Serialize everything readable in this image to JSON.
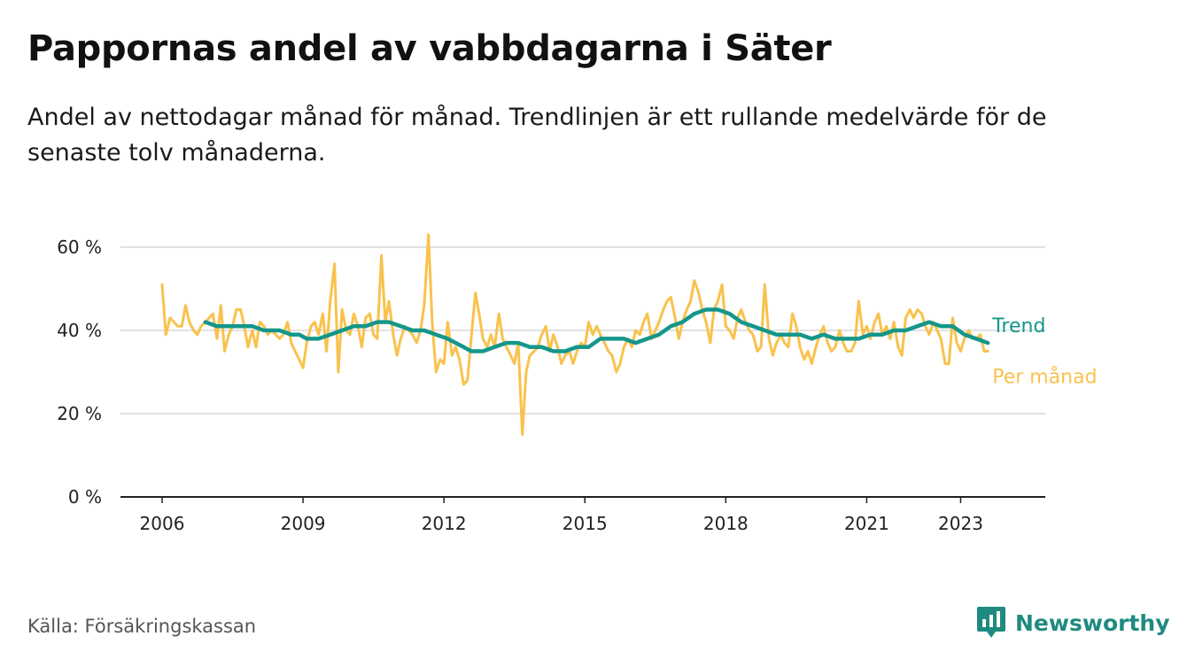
{
  "title": "Pappornas andel av vabbdagarna i Säter",
  "subtitle": "Andel av nettodagar månad för månad. Trendlinjen är ett rullande medelvärde för de senaste tolv månaderna.",
  "source": "Källa: Försäkringskassan",
  "brand": {
    "name": "Newsworthy",
    "icon": "newsworthy-logo-icon",
    "color": "#1f8a80"
  },
  "chart_data": {
    "type": "line",
    "xlim": [
      2006,
      2024
    ],
    "ylim": [
      0,
      0.6
    ],
    "y_ticks": [
      {
        "value": 0,
        "label": "0 %"
      },
      {
        "value": 0.2,
        "label": "20 %"
      },
      {
        "value": 0.4,
        "label": "40 %"
      },
      {
        "value": 0.6,
        "label": "60 %"
      }
    ],
    "x_ticks": [
      {
        "value": 2006,
        "label": "2006"
      },
      {
        "value": 2009,
        "label": "2009"
      },
      {
        "value": 2012,
        "label": "2012"
      },
      {
        "value": 2015,
        "label": "2015"
      },
      {
        "value": 2018,
        "label": "2018"
      },
      {
        "value": 2021,
        "label": "2021"
      },
      {
        "value": 2023,
        "label": "2023"
      }
    ],
    "grid": true,
    "series": [
      {
        "name": "Per månad",
        "color": "#f9c24d",
        "points": [
          [
            2006.0,
            0.51
          ],
          [
            2006.08,
            0.39
          ],
          [
            2006.17,
            0.43
          ],
          [
            2006.25,
            0.42
          ],
          [
            2006.33,
            0.41
          ],
          [
            2006.42,
            0.41
          ],
          [
            2006.5,
            0.46
          ],
          [
            2006.58,
            0.42
          ],
          [
            2006.67,
            0.4
          ],
          [
            2006.75,
            0.39
          ],
          [
            2006.83,
            0.41
          ],
          [
            2006.92,
            0.42
          ],
          [
            2007.0,
            0.43
          ],
          [
            2007.08,
            0.44
          ],
          [
            2007.17,
            0.38
          ],
          [
            2007.25,
            0.46
          ],
          [
            2007.33,
            0.35
          ],
          [
            2007.42,
            0.39
          ],
          [
            2007.5,
            0.41
          ],
          [
            2007.58,
            0.45
          ],
          [
            2007.67,
            0.45
          ],
          [
            2007.75,
            0.41
          ],
          [
            2007.83,
            0.36
          ],
          [
            2007.92,
            0.4
          ],
          [
            2008.0,
            0.36
          ],
          [
            2008.08,
            0.42
          ],
          [
            2008.17,
            0.41
          ],
          [
            2008.25,
            0.39
          ],
          [
            2008.33,
            0.4
          ],
          [
            2008.42,
            0.39
          ],
          [
            2008.5,
            0.38
          ],
          [
            2008.58,
            0.39
          ],
          [
            2008.67,
            0.42
          ],
          [
            2008.75,
            0.37
          ],
          [
            2008.83,
            0.35
          ],
          [
            2008.92,
            0.33
          ],
          [
            2009.0,
            0.31
          ],
          [
            2009.08,
            0.37
          ],
          [
            2009.17,
            0.41
          ],
          [
            2009.25,
            0.42
          ],
          [
            2009.33,
            0.39
          ],
          [
            2009.42,
            0.44
          ],
          [
            2009.5,
            0.35
          ],
          [
            2009.58,
            0.47
          ],
          [
            2009.67,
            0.56
          ],
          [
            2009.75,
            0.3
          ],
          [
            2009.83,
            0.45
          ],
          [
            2009.92,
            0.4
          ],
          [
            2010.0,
            0.39
          ],
          [
            2010.08,
            0.44
          ],
          [
            2010.17,
            0.41
          ],
          [
            2010.25,
            0.36
          ],
          [
            2010.33,
            0.43
          ],
          [
            2010.42,
            0.44
          ],
          [
            2010.5,
            0.39
          ],
          [
            2010.58,
            0.38
          ],
          [
            2010.67,
            0.58
          ],
          [
            2010.75,
            0.42
          ],
          [
            2010.83,
            0.47
          ],
          [
            2010.92,
            0.39
          ],
          [
            2011.0,
            0.34
          ],
          [
            2011.08,
            0.38
          ],
          [
            2011.17,
            0.41
          ],
          [
            2011.25,
            0.4
          ],
          [
            2011.33,
            0.39
          ],
          [
            2011.42,
            0.37
          ],
          [
            2011.5,
            0.4
          ],
          [
            2011.58,
            0.46
          ],
          [
            2011.67,
            0.63
          ],
          [
            2011.75,
            0.42
          ],
          [
            2011.83,
            0.3
          ],
          [
            2011.92,
            0.33
          ],
          [
            2012.0,
            0.32
          ],
          [
            2012.08,
            0.42
          ],
          [
            2012.17,
            0.34
          ],
          [
            2012.25,
            0.36
          ],
          [
            2012.33,
            0.33
          ],
          [
            2012.42,
            0.27
          ],
          [
            2012.5,
            0.28
          ],
          [
            2012.58,
            0.38
          ],
          [
            2012.67,
            0.49
          ],
          [
            2012.75,
            0.44
          ],
          [
            2012.83,
            0.38
          ],
          [
            2012.92,
            0.36
          ],
          [
            2013.0,
            0.39
          ],
          [
            2013.08,
            0.36
          ],
          [
            2013.17,
            0.44
          ],
          [
            2013.25,
            0.38
          ],
          [
            2013.33,
            0.36
          ],
          [
            2013.42,
            0.34
          ],
          [
            2013.5,
            0.32
          ],
          [
            2013.58,
            0.37
          ],
          [
            2013.67,
            0.15
          ],
          [
            2013.75,
            0.3
          ],
          [
            2013.83,
            0.34
          ],
          [
            2013.92,
            0.35
          ],
          [
            2014.0,
            0.36
          ],
          [
            2014.08,
            0.39
          ],
          [
            2014.17,
            0.41
          ],
          [
            2014.25,
            0.35
          ],
          [
            2014.33,
            0.39
          ],
          [
            2014.42,
            0.36
          ],
          [
            2014.5,
            0.32
          ],
          [
            2014.58,
            0.34
          ],
          [
            2014.67,
            0.35
          ],
          [
            2014.75,
            0.32
          ],
          [
            2014.83,
            0.35
          ],
          [
            2014.92,
            0.37
          ],
          [
            2015.0,
            0.36
          ],
          [
            2015.08,
            0.42
          ],
          [
            2015.17,
            0.39
          ],
          [
            2015.25,
            0.41
          ],
          [
            2015.33,
            0.39
          ],
          [
            2015.42,
            0.37
          ],
          [
            2015.5,
            0.35
          ],
          [
            2015.58,
            0.34
          ],
          [
            2015.67,
            0.3
          ],
          [
            2015.75,
            0.32
          ],
          [
            2015.83,
            0.36
          ],
          [
            2015.92,
            0.38
          ],
          [
            2016.0,
            0.36
          ],
          [
            2016.08,
            0.4
          ],
          [
            2016.17,
            0.39
          ],
          [
            2016.25,
            0.42
          ],
          [
            2016.33,
            0.44
          ],
          [
            2016.42,
            0.38
          ],
          [
            2016.5,
            0.4
          ],
          [
            2016.58,
            0.42
          ],
          [
            2016.67,
            0.45
          ],
          [
            2016.75,
            0.47
          ],
          [
            2016.83,
            0.48
          ],
          [
            2016.92,
            0.43
          ],
          [
            2017.0,
            0.38
          ],
          [
            2017.08,
            0.42
          ],
          [
            2017.17,
            0.45
          ],
          [
            2017.25,
            0.47
          ],
          [
            2017.33,
            0.52
          ],
          [
            2017.42,
            0.49
          ],
          [
            2017.5,
            0.45
          ],
          [
            2017.58,
            0.42
          ],
          [
            2017.67,
            0.37
          ],
          [
            2017.75,
            0.45
          ],
          [
            2017.83,
            0.47
          ],
          [
            2017.92,
            0.51
          ],
          [
            2018.0,
            0.41
          ],
          [
            2018.08,
            0.4
          ],
          [
            2018.17,
            0.38
          ],
          [
            2018.25,
            0.43
          ],
          [
            2018.33,
            0.45
          ],
          [
            2018.42,
            0.42
          ],
          [
            2018.5,
            0.4
          ],
          [
            2018.58,
            0.39
          ],
          [
            2018.67,
            0.35
          ],
          [
            2018.75,
            0.36
          ],
          [
            2018.83,
            0.51
          ],
          [
            2018.92,
            0.38
          ],
          [
            2019.0,
            0.34
          ],
          [
            2019.08,
            0.37
          ],
          [
            2019.17,
            0.39
          ],
          [
            2019.25,
            0.37
          ],
          [
            2019.33,
            0.36
          ],
          [
            2019.42,
            0.44
          ],
          [
            2019.5,
            0.41
          ],
          [
            2019.58,
            0.36
          ],
          [
            2019.67,
            0.33
          ],
          [
            2019.75,
            0.35
          ],
          [
            2019.83,
            0.32
          ],
          [
            2019.92,
            0.36
          ],
          [
            2020.0,
            0.39
          ],
          [
            2020.08,
            0.41
          ],
          [
            2020.17,
            0.37
          ],
          [
            2020.25,
            0.35
          ],
          [
            2020.33,
            0.36
          ],
          [
            2020.42,
            0.4
          ],
          [
            2020.5,
            0.37
          ],
          [
            2020.58,
            0.35
          ],
          [
            2020.67,
            0.35
          ],
          [
            2020.75,
            0.37
          ],
          [
            2020.83,
            0.47
          ],
          [
            2020.92,
            0.39
          ],
          [
            2021.0,
            0.41
          ],
          [
            2021.08,
            0.38
          ],
          [
            2021.17,
            0.42
          ],
          [
            2021.25,
            0.44
          ],
          [
            2021.33,
            0.39
          ],
          [
            2021.42,
            0.41
          ],
          [
            2021.5,
            0.38
          ],
          [
            2021.58,
            0.42
          ],
          [
            2021.67,
            0.36
          ],
          [
            2021.75,
            0.34
          ],
          [
            2021.83,
            0.43
          ],
          [
            2021.92,
            0.45
          ],
          [
            2022.0,
            0.43
          ],
          [
            2022.08,
            0.45
          ],
          [
            2022.17,
            0.44
          ],
          [
            2022.25,
            0.41
          ],
          [
            2022.33,
            0.39
          ],
          [
            2022.42,
            0.42
          ],
          [
            2022.5,
            0.4
          ],
          [
            2022.58,
            0.38
          ],
          [
            2022.67,
            0.32
          ],
          [
            2022.75,
            0.32
          ],
          [
            2022.83,
            0.43
          ],
          [
            2022.92,
            0.37
          ],
          [
            2023.0,
            0.35
          ],
          [
            2023.08,
            0.38
          ],
          [
            2023.17,
            0.4
          ],
          [
            2023.25,
            0.38
          ],
          [
            2023.33,
            0.38
          ],
          [
            2023.42,
            0.39
          ],
          [
            2023.5,
            0.35
          ],
          [
            2023.58,
            0.35
          ]
        ]
      },
      {
        "name": "Trend",
        "color": "#14968b",
        "points": [
          [
            2006.92,
            0.42
          ],
          [
            2007.17,
            0.41
          ],
          [
            2007.42,
            0.41
          ],
          [
            2007.67,
            0.41
          ],
          [
            2007.92,
            0.41
          ],
          [
            2008.17,
            0.4
          ],
          [
            2008.5,
            0.4
          ],
          [
            2008.75,
            0.39
          ],
          [
            2008.92,
            0.39
          ],
          [
            2009.08,
            0.38
          ],
          [
            2009.33,
            0.38
          ],
          [
            2009.58,
            0.39
          ],
          [
            2009.83,
            0.4
          ],
          [
            2010.08,
            0.41
          ],
          [
            2010.33,
            0.41
          ],
          [
            2010.58,
            0.42
          ],
          [
            2010.83,
            0.42
          ],
          [
            2011.08,
            0.41
          ],
          [
            2011.33,
            0.4
          ],
          [
            2011.58,
            0.4
          ],
          [
            2011.83,
            0.39
          ],
          [
            2012.08,
            0.38
          ],
          [
            2012.25,
            0.37
          ],
          [
            2012.42,
            0.36
          ],
          [
            2012.58,
            0.35
          ],
          [
            2012.83,
            0.35
          ],
          [
            2013.08,
            0.36
          ],
          [
            2013.33,
            0.37
          ],
          [
            2013.58,
            0.37
          ],
          [
            2013.83,
            0.36
          ],
          [
            2014.08,
            0.36
          ],
          [
            2014.33,
            0.35
          ],
          [
            2014.58,
            0.35
          ],
          [
            2014.83,
            0.36
          ],
          [
            2015.08,
            0.36
          ],
          [
            2015.33,
            0.38
          ],
          [
            2015.58,
            0.38
          ],
          [
            2015.83,
            0.38
          ],
          [
            2016.08,
            0.37
          ],
          [
            2016.33,
            0.38
          ],
          [
            2016.58,
            0.39
          ],
          [
            2016.83,
            0.41
          ],
          [
            2017.08,
            0.42
          ],
          [
            2017.33,
            0.44
          ],
          [
            2017.58,
            0.45
          ],
          [
            2017.83,
            0.45
          ],
          [
            2018.08,
            0.44
          ],
          [
            2018.33,
            0.42
          ],
          [
            2018.58,
            0.41
          ],
          [
            2018.83,
            0.4
          ],
          [
            2019.08,
            0.39
          ],
          [
            2019.33,
            0.39
          ],
          [
            2019.58,
            0.39
          ],
          [
            2019.83,
            0.38
          ],
          [
            2020.08,
            0.39
          ],
          [
            2020.33,
            0.38
          ],
          [
            2020.58,
            0.38
          ],
          [
            2020.83,
            0.38
          ],
          [
            2021.08,
            0.39
          ],
          [
            2021.33,
            0.39
          ],
          [
            2021.58,
            0.4
          ],
          [
            2021.83,
            0.4
          ],
          [
            2022.08,
            0.41
          ],
          [
            2022.33,
            0.42
          ],
          [
            2022.58,
            0.41
          ],
          [
            2022.83,
            0.41
          ],
          [
            2023.08,
            0.39
          ],
          [
            2023.33,
            0.38
          ],
          [
            2023.58,
            0.37
          ]
        ]
      }
    ]
  }
}
